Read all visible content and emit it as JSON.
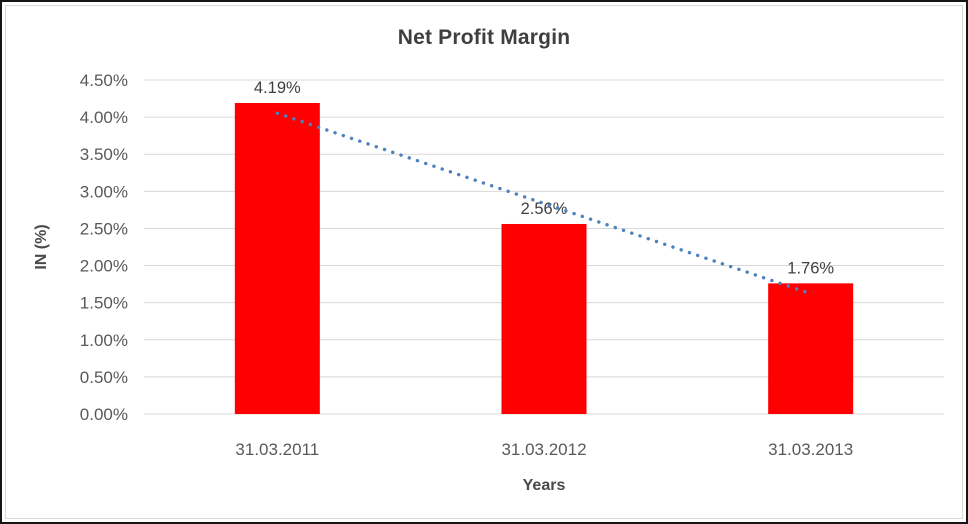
{
  "chart_data": {
    "type": "bar",
    "title": "Net Profit Margin",
    "xlabel": "Years",
    "ylabel": "IN (%)",
    "categories": [
      "31.03.2011",
      "31.03.2012",
      "31.03.2013"
    ],
    "values": [
      4.19,
      2.56,
      1.76
    ],
    "data_labels": [
      "4.19%",
      "2.56%",
      "1.76%"
    ],
    "ylim": [
      0,
      4.5
    ],
    "yticks": {
      "values": [
        0,
        0.5,
        1,
        1.5,
        2,
        2.5,
        3,
        3.5,
        4,
        4.5
      ],
      "labels": [
        "0.00%",
        "0.50%",
        "1.00%",
        "1.50%",
        "2.00%",
        "2.50%",
        "3.00%",
        "3.50%",
        "4.00%",
        "4.50%"
      ]
    },
    "grid": true,
    "legend": "none",
    "bar_color": "#ff0000",
    "gridline_color": "#d9d9d9",
    "trendline": {
      "type": "linear",
      "style": "dotted",
      "color": "#4d82be"
    }
  }
}
